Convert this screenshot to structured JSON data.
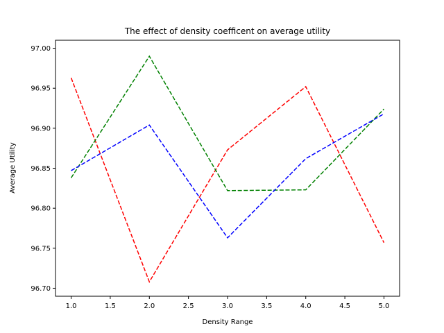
{
  "chart_data": {
    "type": "line",
    "title": "The effect of density coefficent on average utility",
    "xlabel": "Density Range",
    "ylabel": "Average Utility",
    "xlim": [
      0.8,
      5.2
    ],
    "ylim": [
      96.69,
      97.01
    ],
    "x_ticks": [
      1.0,
      1.5,
      2.0,
      2.5,
      3.0,
      3.5,
      4.0,
      4.5,
      5.0
    ],
    "x_tick_labels": [
      "1.0",
      "1.5",
      "2.0",
      "2.5",
      "3.0",
      "3.5",
      "4.0",
      "4.5",
      "5.0"
    ],
    "y_ticks": [
      96.7,
      96.75,
      96.8,
      96.85,
      96.9,
      96.95,
      97.0
    ],
    "y_tick_labels": [
      "96.70",
      "96.75",
      "96.80",
      "96.85",
      "96.90",
      "96.95",
      "97.00"
    ],
    "x": [
      1.0,
      2.0,
      3.0,
      4.0,
      5.0
    ],
    "grid": false,
    "legend": "none",
    "series": [
      {
        "color": "#ff0000",
        "line_style": "dashed",
        "values": [
          96.963,
          96.708,
          96.873,
          96.952,
          96.757
        ]
      },
      {
        "color": "#008000",
        "line_style": "dashed",
        "values": [
          96.838,
          96.99,
          96.822,
          96.823,
          96.924
        ]
      },
      {
        "color": "#0000ff",
        "line_style": "dashed",
        "values": [
          96.847,
          96.904,
          96.763,
          96.862,
          96.918
        ]
      }
    ]
  }
}
